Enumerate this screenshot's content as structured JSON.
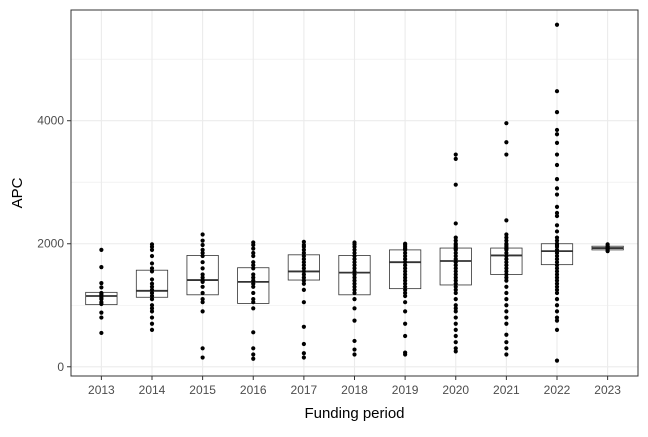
{
  "chart_data": {
    "type": "boxplot",
    "xlabel": "Funding period",
    "ylabel": "APC",
    "categories": [
      "2013",
      "2014",
      "2015",
      "2016",
      "2017",
      "2018",
      "2019",
      "2020",
      "2021",
      "2022",
      "2023"
    ],
    "ylim": [
      -150,
      5800
    ],
    "yticks": [
      0,
      2000,
      4000
    ],
    "y_minor_ticks": [
      1000,
      3000,
      5000
    ],
    "grid": true,
    "theme": "bw",
    "boxes": [
      {
        "category": "2013",
        "q1": 1010,
        "median": 1150,
        "q3": 1210,
        "whisker_low": 1010,
        "whisker_high": 1210,
        "points": [
          1900,
          1620,
          1360,
          1290,
          1200,
          1180,
          1150,
          1120,
          1100,
          1050,
          1020,
          880,
          800,
          550
        ]
      },
      {
        "category": "2014",
        "q1": 1130,
        "median": 1235,
        "q3": 1570,
        "whisker_low": 1130,
        "whisker_high": 1570,
        "points": [
          1990,
          1950,
          1900,
          1800,
          1680,
          1600,
          1550,
          1420,
          1350,
          1300,
          1250,
          1200,
          1150,
          1100,
          1000,
          950,
          900,
          800,
          700,
          600
        ]
      },
      {
        "category": "2015",
        "q1": 1170,
        "median": 1410,
        "q3": 1810,
        "whisker_low": 1170,
        "whisker_high": 1810,
        "points": [
          2150,
          2050,
          1980,
          1900,
          1850,
          1800,
          1700,
          1600,
          1500,
          1450,
          1400,
          1380,
          1300,
          1200,
          1100,
          1050,
          900,
          300,
          150
        ]
      },
      {
        "category": "2016",
        "q1": 1030,
        "median": 1380,
        "q3": 1610,
        "whisker_low": 1030,
        "whisker_high": 1610,
        "points": [
          2020,
          1980,
          1920,
          1850,
          1800,
          1700,
          1650,
          1600,
          1500,
          1450,
          1400,
          1350,
          1300,
          1200,
          1100,
          1050,
          950,
          560,
          300,
          200,
          130
        ]
      },
      {
        "category": "2017",
        "q1": 1410,
        "median": 1550,
        "q3": 1820,
        "whisker_low": 1410,
        "whisker_high": 1820,
        "points": [
          2030,
          1980,
          1950,
          1900,
          1850,
          1800,
          1750,
          1700,
          1650,
          1600,
          1550,
          1500,
          1450,
          1400,
          1350,
          1250,
          1050,
          650,
          370,
          220,
          150
        ]
      },
      {
        "category": "2018",
        "q1": 1170,
        "median": 1530,
        "q3": 1810,
        "whisker_low": 1170,
        "whisker_high": 1810,
        "points": [
          2020,
          1990,
          1950,
          1900,
          1850,
          1800,
          1750,
          1700,
          1650,
          1600,
          1550,
          1500,
          1450,
          1400,
          1350,
          1300,
          1250,
          1200,
          1100,
          950,
          750,
          420,
          280,
          200
        ]
      },
      {
        "category": "2019",
        "q1": 1270,
        "median": 1700,
        "q3": 1900,
        "whisker_low": 1270,
        "whisker_high": 1900,
        "points": [
          2000,
          1980,
          1950,
          1920,
          1900,
          1850,
          1800,
          1750,
          1700,
          1650,
          1600,
          1550,
          1500,
          1450,
          1400,
          1350,
          1300,
          1250,
          1200,
          1150,
          1050,
          900,
          700,
          500,
          230,
          200
        ]
      },
      {
        "category": "2020",
        "q1": 1330,
        "median": 1720,
        "q3": 1930,
        "whisker_low": 1330,
        "whisker_high": 1930,
        "points": [
          3450,
          3380,
          2960,
          2330,
          2100,
          2050,
          2000,
          1980,
          1950,
          1920,
          1900,
          1850,
          1800,
          1750,
          1700,
          1650,
          1600,
          1550,
          1500,
          1450,
          1400,
          1350,
          1300,
          1250,
          1200,
          1100,
          1000,
          950,
          900,
          800,
          700,
          600,
          500,
          400,
          300,
          250
        ]
      },
      {
        "category": "2021",
        "q1": 1500,
        "median": 1810,
        "q3": 1930,
        "whisker_low": 1500,
        "whisker_high": 1930,
        "points": [
          3960,
          3650,
          3450,
          2380,
          2150,
          2100,
          2050,
          2000,
          1980,
          1950,
          1920,
          1900,
          1850,
          1800,
          1750,
          1700,
          1650,
          1600,
          1550,
          1500,
          1450,
          1400,
          1300,
          1200,
          1100,
          1000,
          900,
          800,
          700,
          520,
          400,
          300,
          200
        ]
      },
      {
        "category": "2022",
        "q1": 1660,
        "median": 1880,
        "q3": 2000,
        "whisker_low": 1660,
        "whisker_high": 2000,
        "points": [
          5560,
          4480,
          4140,
          3850,
          3780,
          3640,
          3450,
          3280,
          3050,
          2900,
          2800,
          2600,
          2500,
          2450,
          2300,
          2200,
          2100,
          2050,
          2000,
          1980,
          1950,
          1900,
          1850,
          1800,
          1750,
          1700,
          1650,
          1600,
          1550,
          1500,
          1450,
          1400,
          1350,
          1300,
          1250,
          1200,
          1100,
          1000,
          900,
          800,
          750,
          600,
          100
        ]
      },
      {
        "category": "2023",
        "q1": 1900,
        "median": 1930,
        "q3": 1960,
        "whisker_low": 1900,
        "whisker_high": 1960,
        "points": [
          1990,
          1960,
          1950,
          1930,
          1920,
          1900,
          1880
        ]
      }
    ],
    "colors": {
      "panel_border": "#333333",
      "grid": "#ebebeb",
      "box_stroke": "#333333",
      "points": "#000000"
    }
  }
}
